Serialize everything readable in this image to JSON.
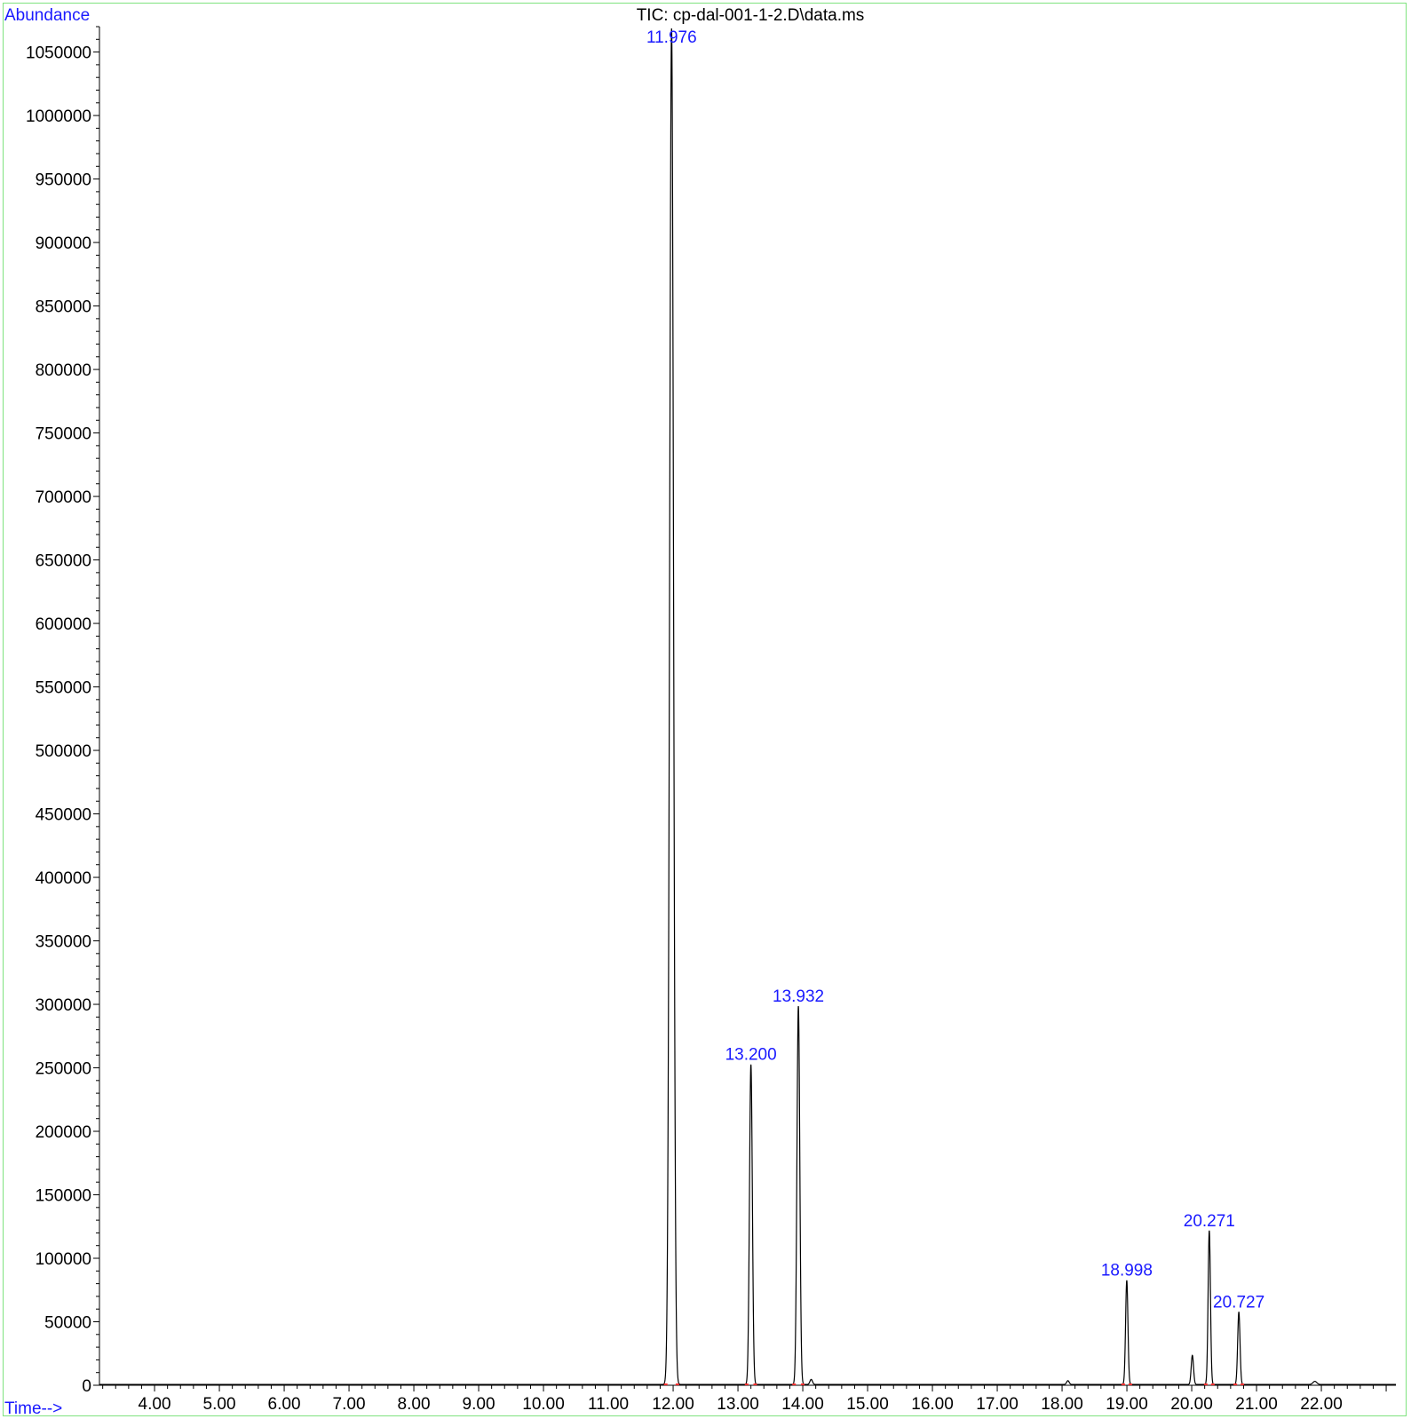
{
  "chart_data": {
    "type": "line",
    "title": "TIC: cp-dal-001-1-2.D\\data.ms",
    "ylabel": "Abundance",
    "xlabel": "Time-->",
    "xlim": [
      3.15,
      23.15
    ],
    "ylim": [
      0,
      1070000
    ],
    "x_ticks": [
      4,
      5,
      6,
      7,
      8,
      9,
      10,
      11,
      12,
      13,
      14,
      15,
      16,
      17,
      18,
      19,
      20,
      21,
      22
    ],
    "x_tick_labels": [
      "4.00",
      "5.00",
      "6.00",
      "7.00",
      "8.00",
      "9.00",
      "10.00",
      "11.00",
      "12.00",
      "13.00",
      "14.00",
      "15.00",
      "16.00",
      "17.00",
      "18.00",
      "19.00",
      "20.00",
      "21.00",
      "22.00"
    ],
    "y_ticks": [
      0,
      50000,
      100000,
      150000,
      200000,
      250000,
      300000,
      350000,
      400000,
      450000,
      500000,
      550000,
      600000,
      650000,
      700000,
      750000,
      800000,
      850000,
      900000,
      950000,
      1000000,
      1050000
    ],
    "y_tick_labels": [
      "0",
      "50000",
      "100000",
      "150000",
      "200000",
      "250000",
      "300000",
      "350000",
      "400000",
      "450000",
      "500000",
      "550000",
      "600000",
      "650000",
      "700000",
      "750000",
      "800000",
      "850000",
      "900000",
      "950000",
      "1000000",
      "1050000"
    ],
    "peaks": [
      {
        "rt": 11.976,
        "label": "11.976",
        "height": 1068000,
        "width": 0.03
      },
      {
        "rt": 13.2,
        "label": "13.200",
        "height": 252000,
        "width": 0.022
      },
      {
        "rt": 13.932,
        "label": "13.932",
        "height": 298000,
        "width": 0.022
      },
      {
        "rt": 18.998,
        "label": "18.998",
        "height": 82000,
        "width": 0.018
      },
      {
        "rt": 20.271,
        "label": "20.271",
        "height": 121000,
        "width": 0.018
      },
      {
        "rt": 20.727,
        "label": "20.727",
        "height": 57000,
        "width": 0.018
      }
    ],
    "minor_peaks": [
      {
        "rt": 14.13,
        "height": 4000,
        "width": 0.02
      },
      {
        "rt": 18.09,
        "height": 3000,
        "width": 0.02
      },
      {
        "rt": 20.01,
        "height": 23000,
        "width": 0.018
      },
      {
        "rt": 21.9,
        "height": 2500,
        "width": 0.03
      }
    ],
    "colors": {
      "trace": "#000000",
      "label": "#1a1aff",
      "axis": "#000000",
      "frame": "#7fe37f",
      "baseline_marker": "#ff3030"
    },
    "grid": false
  }
}
